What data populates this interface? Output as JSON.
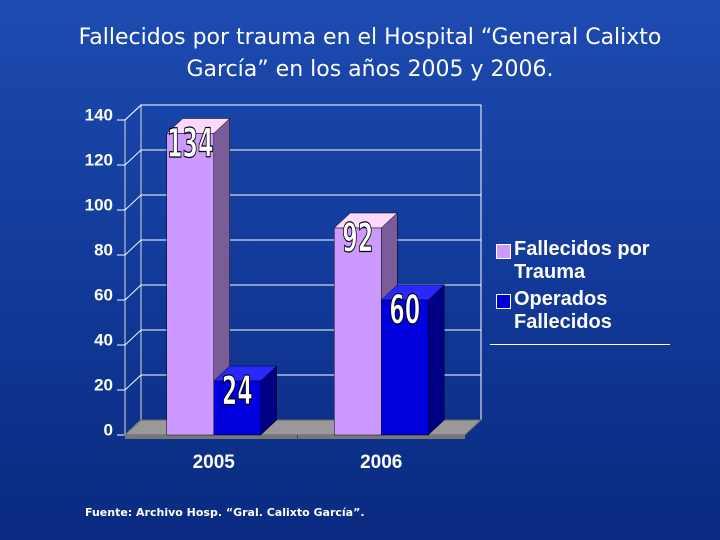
{
  "chart_data": {
    "type": "bar3d",
    "title": [
      "Fallecidos por trauma en el   Hospital “General Calixto",
      "García” en los años 2005 y 2006."
    ],
    "categories": [
      "2005",
      "2006"
    ],
    "series": [
      {
        "name": "Fallecidos por Trauma",
        "color": "#cc99ff",
        "values": [
          134,
          92
        ]
      },
      {
        "name": "Operados Fallecidos",
        "color": "#0000dd",
        "values": [
          24,
          60
        ]
      }
    ],
    "ylim": [
      0,
      140
    ],
    "yticks": [
      0,
      20,
      40,
      60,
      80,
      100,
      120,
      140
    ],
    "grid": true,
    "legend": "right",
    "source": "Fuente: Archivo Hosp. “Gral. Calixto García”."
  }
}
